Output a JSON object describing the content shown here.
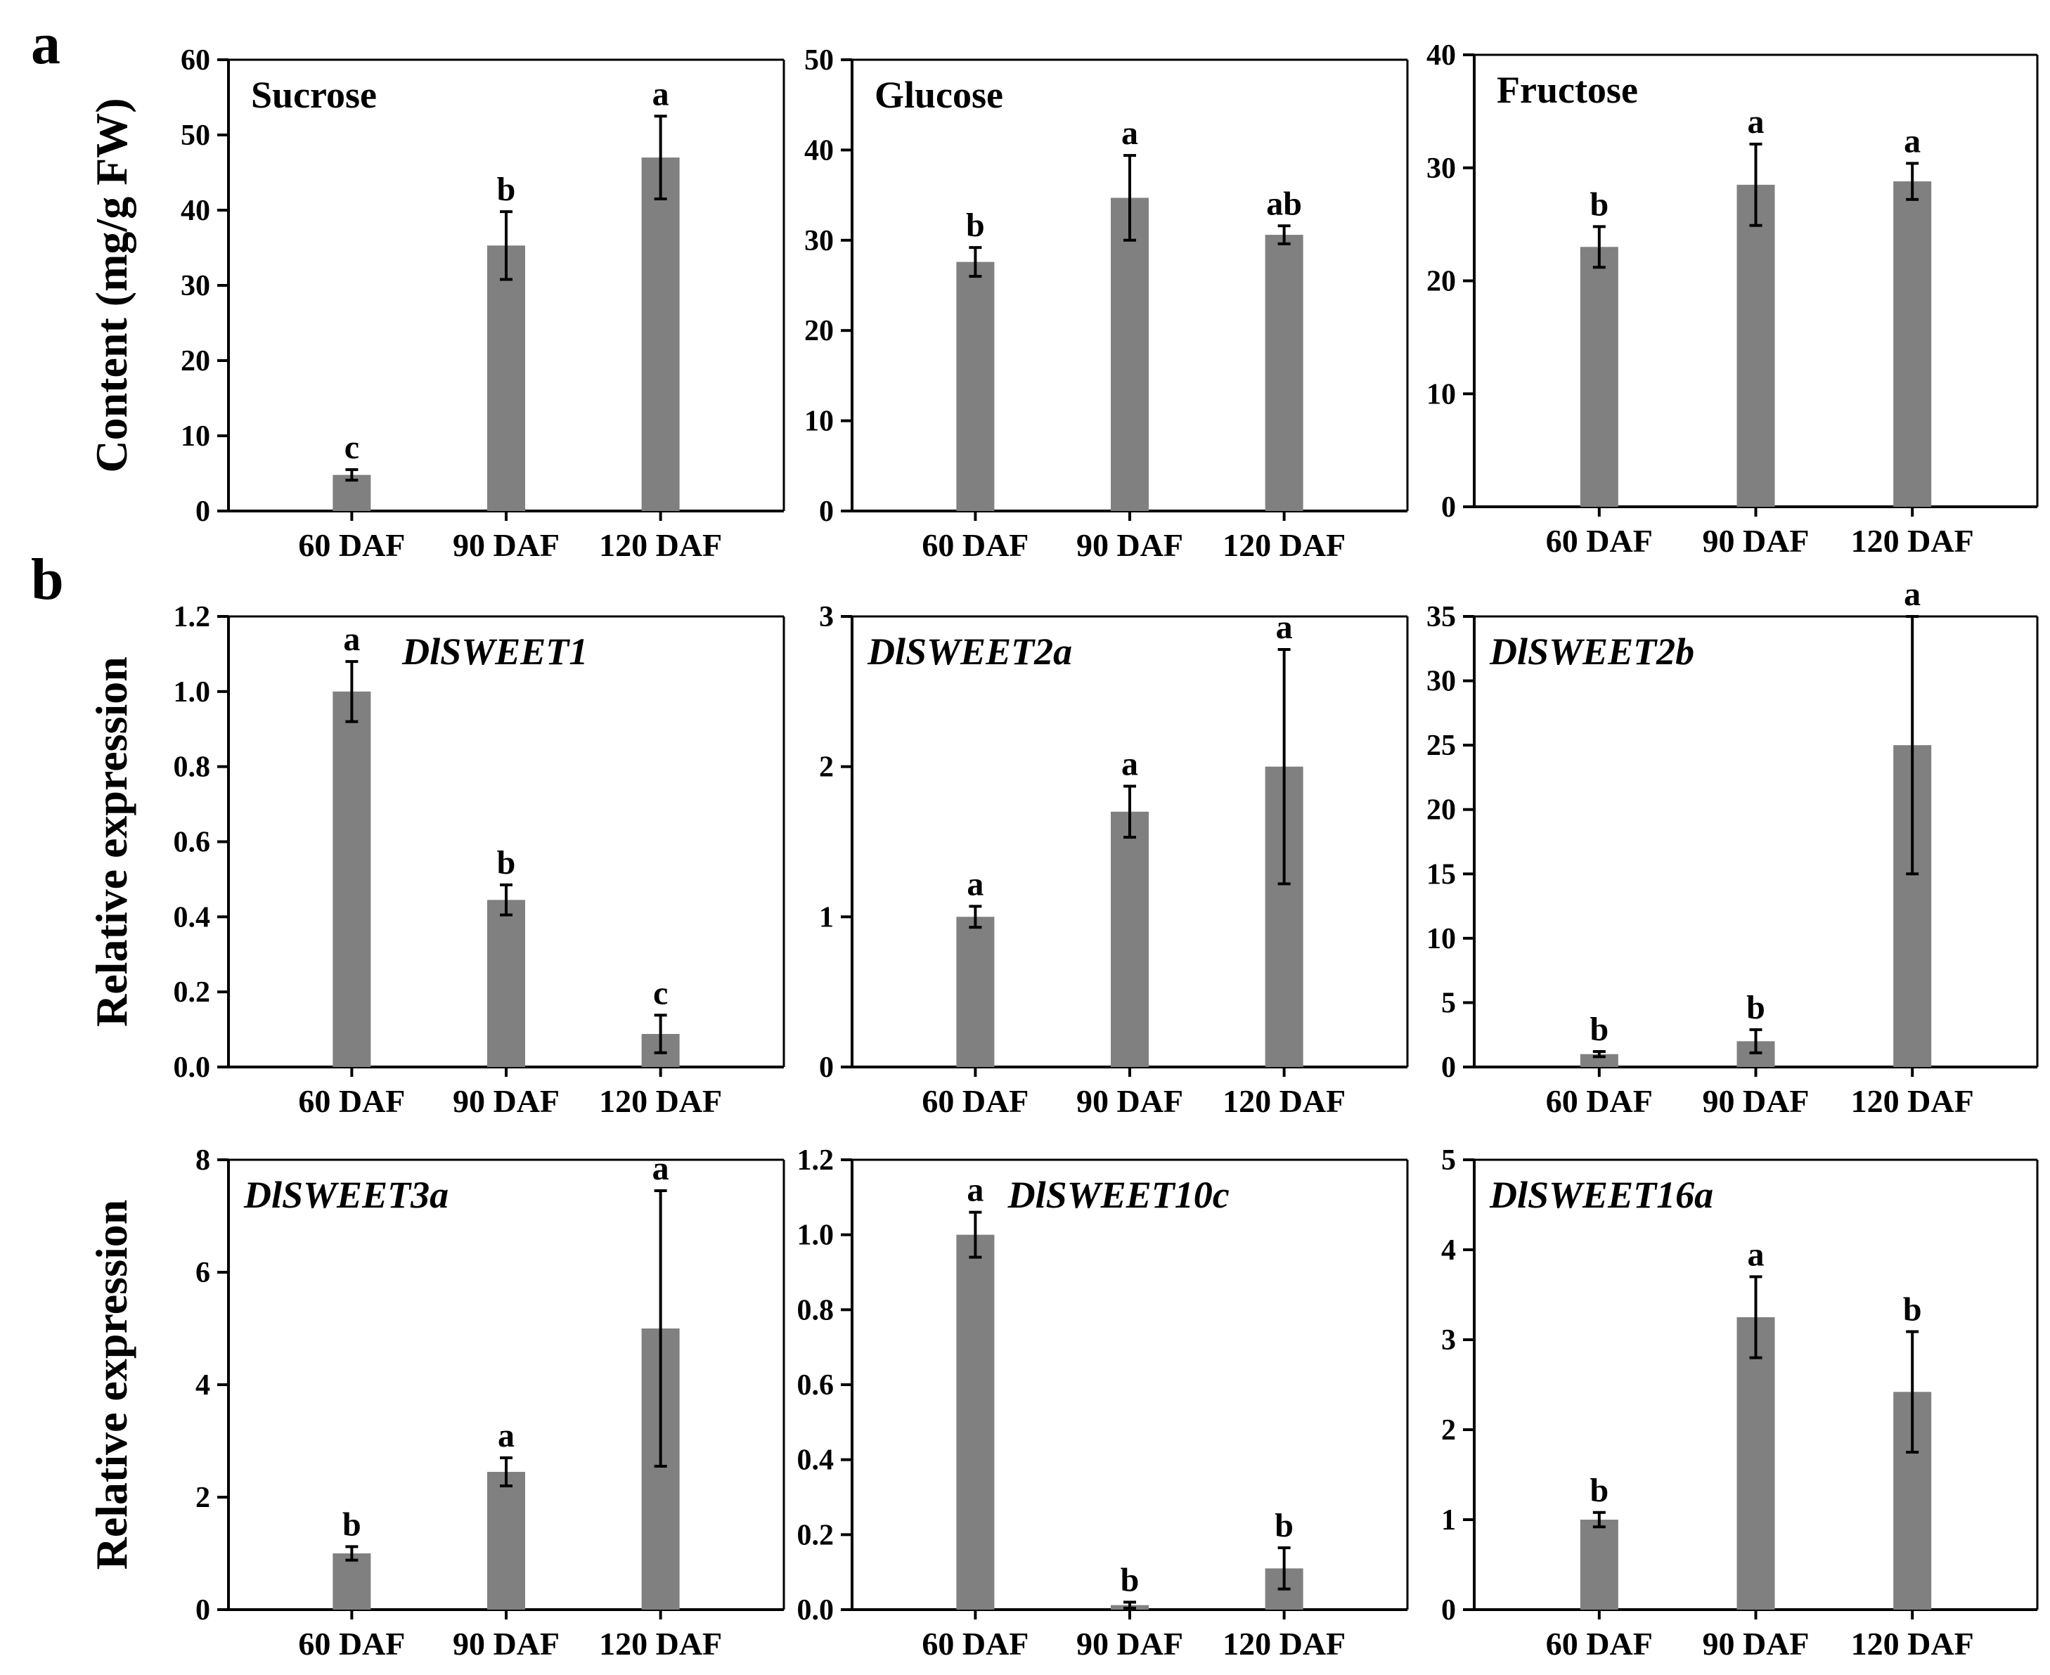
{
  "panel_labels": [
    "a",
    "b"
  ],
  "y_labels": {
    "content": "Content (mg/g FW)",
    "expression": "Relative expression"
  },
  "chart_data": [
    {
      "type": "bar",
      "title": "Sucrose",
      "italic": false,
      "categories": [
        "60 DAF",
        "90 DAF",
        "120 DAF"
      ],
      "values": [
        4.8,
        35.3,
        47.0
      ],
      "errors": [
        0.7,
        4.5,
        5.5
      ],
      "letters": [
        "c",
        "b",
        "a"
      ],
      "ylim": [
        0,
        60
      ],
      "yticks": [
        "0",
        "10",
        "20",
        "30",
        "40",
        "50",
        "60"
      ],
      "ylabel": "Content (mg/g FW)",
      "bar_color": "#808080"
    },
    {
      "type": "bar",
      "title": "Glucose",
      "italic": false,
      "categories": [
        "60 DAF",
        "90 DAF",
        "120 DAF"
      ],
      "values": [
        27.6,
        34.7,
        30.6
      ],
      "errors": [
        1.6,
        4.7,
        1.0
      ],
      "letters": [
        "b",
        "a",
        "ab"
      ],
      "ylim": [
        0,
        50
      ],
      "yticks": [
        "0",
        "10",
        "20",
        "30",
        "40",
        "50"
      ],
      "ylabel": "",
      "bar_color": "#808080"
    },
    {
      "type": "bar",
      "title": "Fructose",
      "italic": false,
      "categories": [
        "60 DAF",
        "90 DAF",
        "120 DAF"
      ],
      "values": [
        23.0,
        28.5,
        28.8
      ],
      "errors": [
        1.8,
        3.6,
        1.6
      ],
      "letters": [
        "b",
        "a",
        "a"
      ],
      "ylim": [
        0,
        40
      ],
      "yticks": [
        "0",
        "10",
        "20",
        "30",
        "40"
      ],
      "ylabel": "",
      "bar_color": "#808080"
    },
    {
      "type": "bar",
      "title": "DlSWEET1",
      "italic": true,
      "categories": [
        "60 DAF",
        "90 DAF",
        "120 DAF"
      ],
      "values": [
        1.0,
        0.445,
        0.088
      ],
      "errors": [
        0.08,
        0.04,
        0.05
      ],
      "letters": [
        "a",
        "b",
        "c"
      ],
      "ylim": [
        0,
        1.2
      ],
      "yticks": [
        "0.0",
        "0.2",
        "0.4",
        "0.6",
        "0.8",
        "1.0",
        "1.2"
      ],
      "ylabel": "Relative expression",
      "bar_color": "#808080"
    },
    {
      "type": "bar",
      "title": "DlSWEET2a",
      "italic": true,
      "categories": [
        "60 DAF",
        "90 DAF",
        "120 DAF"
      ],
      "values": [
        1.0,
        1.7,
        2.0
      ],
      "errors": [
        0.07,
        0.17,
        0.78
      ],
      "letters": [
        "a",
        "a",
        "a"
      ],
      "ylim": [
        0,
        3
      ],
      "yticks": [
        "0",
        "1",
        "2",
        "3"
      ],
      "ylabel": "",
      "bar_color": "#808080"
    },
    {
      "type": "bar",
      "title": "DlSWEET2b",
      "italic": true,
      "categories": [
        "60 DAF",
        "90 DAF",
        "120 DAF"
      ],
      "values": [
        1.0,
        2.0,
        25.0
      ],
      "errors": [
        0.2,
        0.9,
        10.0
      ],
      "letters": [
        "b",
        "b",
        "a"
      ],
      "ylim": [
        0,
        35
      ],
      "yticks": [
        "0",
        "5",
        "10",
        "15",
        "20",
        "25",
        "30",
        "35"
      ],
      "ylabel": "",
      "bar_color": "#808080"
    },
    {
      "type": "bar",
      "title": "DlSWEET3a",
      "italic": true,
      "categories": [
        "60 DAF",
        "90 DAF",
        "120 DAF"
      ],
      "values": [
        1.0,
        2.45,
        5.0
      ],
      "errors": [
        0.12,
        0.25,
        2.45
      ],
      "letters": [
        "b",
        "a",
        "a"
      ],
      "ylim": [
        0,
        8
      ],
      "yticks": [
        "0",
        "2",
        "4",
        "6",
        "8"
      ],
      "ylabel": "Relative expression",
      "bar_color": "#808080"
    },
    {
      "type": "bar",
      "title": "DlSWEET10c",
      "italic": true,
      "categories": [
        "60 DAF",
        "90 DAF",
        "120 DAF"
      ],
      "values": [
        1.0,
        0.012,
        0.11
      ],
      "errors": [
        0.06,
        0.008,
        0.055
      ],
      "letters": [
        "a",
        "b",
        "b"
      ],
      "ylim": [
        0,
        1.2
      ],
      "yticks": [
        "0.0",
        "0.2",
        "0.4",
        "0.6",
        "0.8",
        "1.0",
        "1.2"
      ],
      "ylabel": "",
      "bar_color": "#808080"
    },
    {
      "type": "bar",
      "title": "DlSWEET16a",
      "italic": true,
      "categories": [
        "60 DAF",
        "90 DAF",
        "120 DAF"
      ],
      "values": [
        1.0,
        3.25,
        2.42
      ],
      "errors": [
        0.08,
        0.45,
        0.67
      ],
      "letters": [
        "b",
        "a",
        "b"
      ],
      "ylim": [
        0,
        5
      ],
      "yticks": [
        "0",
        "1",
        "2",
        "3",
        "4",
        "5"
      ],
      "ylabel": "",
      "bar_color": "#808080"
    }
  ]
}
